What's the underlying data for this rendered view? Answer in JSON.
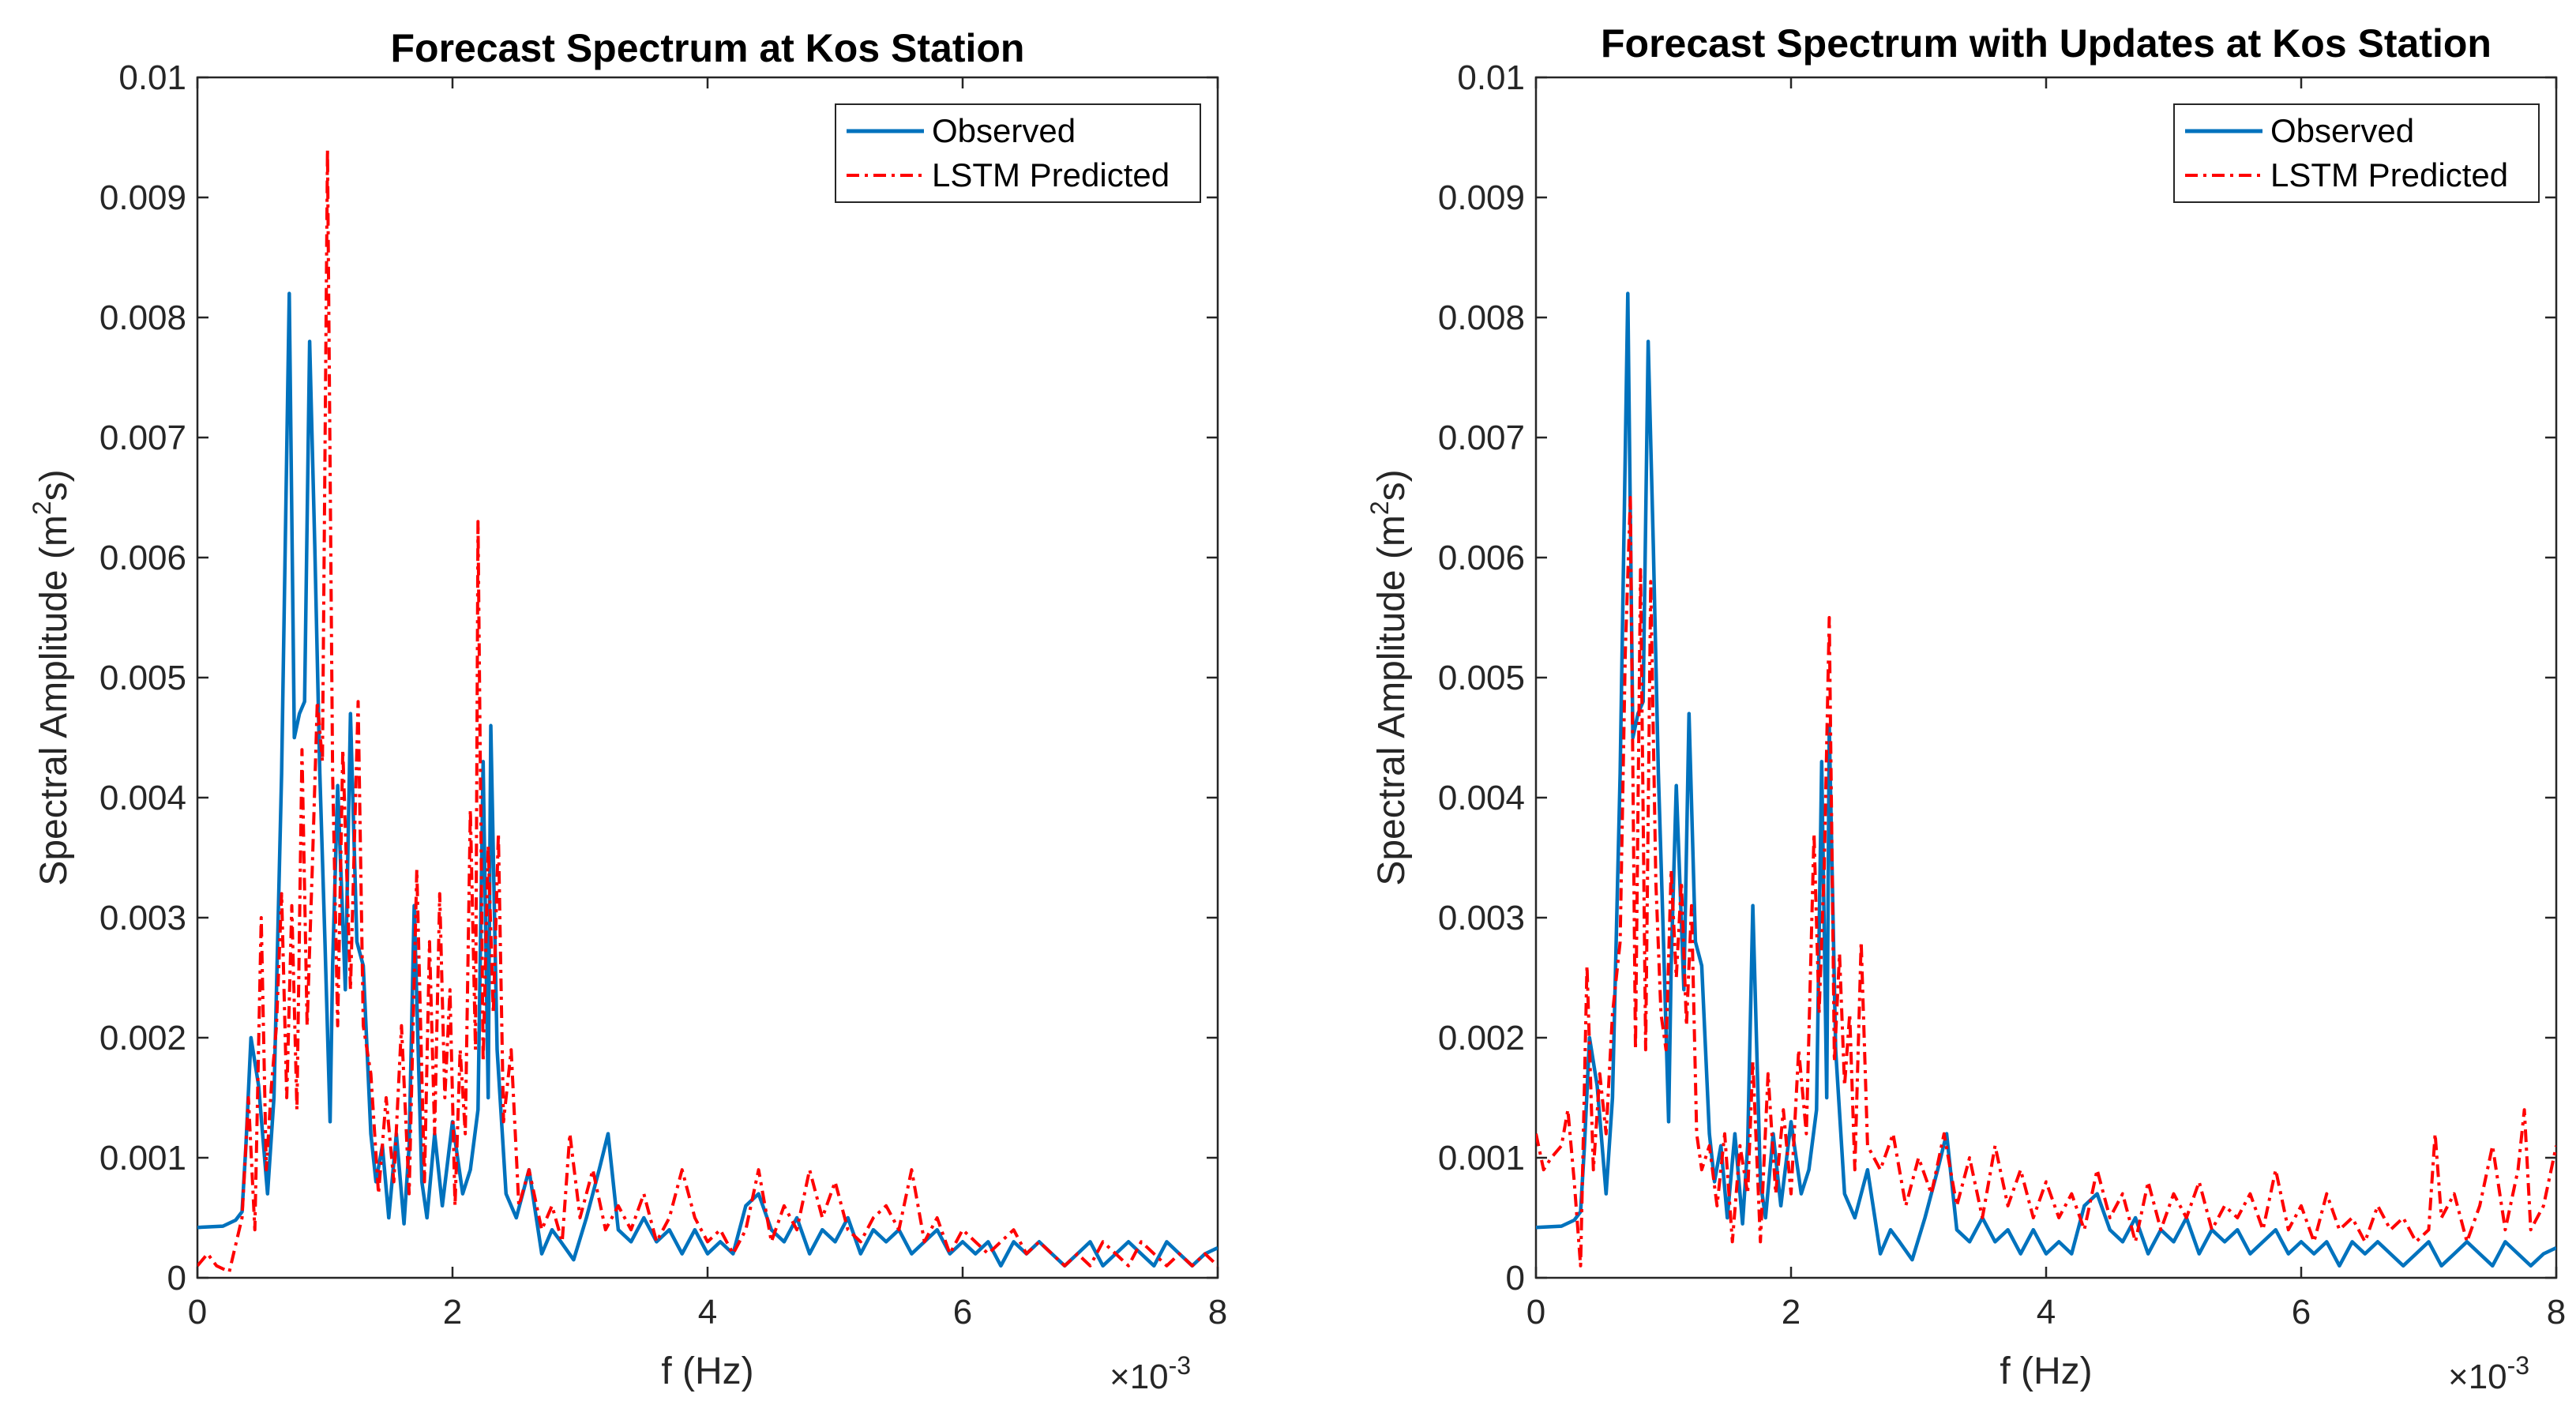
{
  "chart_data": [
    {
      "type": "line",
      "title": "Forecast Spectrum at Kos Station",
      "xlabel": "f (Hz)",
      "ylabel_base": "Spectral Amplitude (m",
      "ylabel_sup": "2",
      "ylabel_tail": "s)",
      "x_exponent_label": "×10",
      "x_exponent": "-3",
      "xlim": [
        0,
        8
      ],
      "ylim": [
        0,
        0.01
      ],
      "x_scale": 0.001,
      "xticks": [
        0,
        2,
        4,
        6,
        8
      ],
      "xtick_labels": [
        "0",
        "2",
        "4",
        "6",
        "8"
      ],
      "yticks": [
        0,
        0.001,
        0.002,
        0.003,
        0.004,
        0.005,
        0.006,
        0.007,
        0.008,
        0.009,
        0.01
      ],
      "ytick_labels": [
        "0",
        "0.001",
        "0.002",
        "0.003",
        "0.004",
        "0.005",
        "0.006",
        "0.007",
        "0.008",
        "0.009",
        "0.01"
      ],
      "grid": false,
      "legend_position": "top-right",
      "series": [
        {
          "name": "Observed",
          "color": "#0072BD",
          "dash": "solid",
          "x": [
            0,
            0.2,
            0.3,
            0.35,
            0.38,
            0.42,
            0.48,
            0.55,
            0.6,
            0.66,
            0.72,
            0.76,
            0.8,
            0.84,
            0.88,
            0.92,
            0.96,
            1.0,
            1.04,
            1.06,
            1.1,
            1.16,
            1.2,
            1.25,
            1.3,
            1.36,
            1.4,
            1.45,
            1.5,
            1.56,
            1.62,
            1.66,
            1.7,
            1.76,
            1.8,
            1.86,
            1.92,
            2.0,
            2.08,
            2.14,
            2.2,
            2.24,
            2.28,
            2.3,
            2.35,
            2.42,
            2.5,
            2.6,
            2.7,
            2.78,
            2.85,
            2.95,
            3.05,
            3.15,
            3.22,
            3.3,
            3.4,
            3.5,
            3.6,
            3.7,
            3.8,
            3.9,
            4.0,
            4.1,
            4.2,
            4.3,
            4.4,
            4.5,
            4.6,
            4.7,
            4.8,
            4.9,
            5.0,
            5.1,
            5.2,
            5.3,
            5.4,
            5.5,
            5.6,
            5.7,
            5.8,
            5.9,
            6.0,
            6.1,
            6.2,
            6.3,
            6.4,
            6.5,
            6.6,
            6.7,
            6.8,
            6.9,
            7.0,
            7.1,
            7.2,
            7.3,
            7.4,
            7.5,
            7.6,
            7.7,
            7.8,
            7.9,
            8.0
          ],
          "y": [
            0.00042,
            0.00043,
            0.00048,
            0.00055,
            0.0011,
            0.002,
            0.0016,
            0.0007,
            0.0015,
            0.0042,
            0.0082,
            0.0045,
            0.0047,
            0.0048,
            0.0078,
            0.0061,
            0.0042,
            0.0028,
            0.0013,
            0.0026,
            0.0041,
            0.0024,
            0.0047,
            0.0028,
            0.0026,
            0.0012,
            0.0008,
            0.0011,
            0.0005,
            0.0012,
            0.00045,
            0.0011,
            0.0031,
            0.0008,
            0.0005,
            0.0012,
            0.0006,
            0.0013,
            0.0007,
            0.0009,
            0.0014,
            0.0043,
            0.0015,
            0.0046,
            0.0019,
            0.0007,
            0.0005,
            0.0009,
            0.0002,
            0.0004,
            0.0003,
            0.00015,
            0.0005,
            0.0009,
            0.0012,
            0.0004,
            0.0003,
            0.0005,
            0.0003,
            0.0004,
            0.0002,
            0.0004,
            0.0002,
            0.0003,
            0.0002,
            0.0006,
            0.0007,
            0.0004,
            0.0003,
            0.0005,
            0.0002,
            0.0004,
            0.0003,
            0.0005,
            0.0002,
            0.0004,
            0.0003,
            0.0004,
            0.0002,
            0.0003,
            0.0004,
            0.0002,
            0.0003,
            0.0002,
            0.0003,
            0.0001,
            0.0003,
            0.0002,
            0.0003,
            0.0002,
            0.0001,
            0.0002,
            0.0003,
            0.0001,
            0.0002,
            0.0003,
            0.0002,
            0.0001,
            0.0003,
            0.0002,
            0.0001,
            0.0002,
            0.00025
          ]
        },
        {
          "name": "LSTM Predicted",
          "color": "#FF0000",
          "dash": "dashdot",
          "x": [
            0,
            0.08,
            0.15,
            0.25,
            0.35,
            0.4,
            0.45,
            0.5,
            0.54,
            0.58,
            0.62,
            0.66,
            0.7,
            0.74,
            0.78,
            0.82,
            0.86,
            0.9,
            0.94,
            0.98,
            1.02,
            1.06,
            1.1,
            1.14,
            1.2,
            1.26,
            1.3,
            1.36,
            1.42,
            1.48,
            1.54,
            1.6,
            1.66,
            1.72,
            1.78,
            1.82,
            1.86,
            1.9,
            1.94,
            1.98,
            2.02,
            2.06,
            2.1,
            2.14,
            2.18,
            2.2,
            2.24,
            2.28,
            2.32,
            2.36,
            2.4,
            2.46,
            2.52,
            2.6,
            2.7,
            2.78,
            2.86,
            2.92,
            3.0,
            3.1,
            3.2,
            3.3,
            3.4,
            3.5,
            3.6,
            3.7,
            3.8,
            3.9,
            4.0,
            4.1,
            4.2,
            4.3,
            4.4,
            4.5,
            4.6,
            4.7,
            4.8,
            4.9,
            5.0,
            5.1,
            5.2,
            5.3,
            5.4,
            5.5,
            5.6,
            5.7,
            5.8,
            5.9,
            6.0,
            6.1,
            6.2,
            6.3,
            6.4,
            6.5,
            6.6,
            6.7,
            6.8,
            6.9,
            7.0,
            7.1,
            7.2,
            7.3,
            7.4,
            7.5,
            7.6,
            7.7,
            7.8,
            7.9,
            8.0
          ],
          "y": [
            0.0001,
            0.0002,
            0.0001,
            5e-05,
            0.0005,
            0.0015,
            0.0004,
            0.003,
            0.0009,
            0.0016,
            0.0021,
            0.0032,
            0.0015,
            0.0031,
            0.0014,
            0.0044,
            0.0021,
            0.0034,
            0.0048,
            0.0043,
            0.0094,
            0.0042,
            0.0021,
            0.0044,
            0.0024,
            0.0048,
            0.0021,
            0.0017,
            0.0007,
            0.0015,
            0.0008,
            0.0021,
            0.0007,
            0.0034,
            0.0008,
            0.0028,
            0.0012,
            0.0032,
            0.0015,
            0.0024,
            0.0006,
            0.0019,
            0.0012,
            0.0039,
            0.0019,
            0.0063,
            0.0018,
            0.0036,
            0.0022,
            0.0037,
            0.0013,
            0.0019,
            0.0006,
            0.0009,
            0.0004,
            0.0006,
            0.0003,
            0.0012,
            0.0005,
            0.0009,
            0.0004,
            0.0006,
            0.0004,
            0.0007,
            0.0003,
            0.0005,
            0.0009,
            0.0005,
            0.0003,
            0.0004,
            0.0002,
            0.0004,
            0.0009,
            0.0003,
            0.0006,
            0.0004,
            0.0009,
            0.0005,
            0.0008,
            0.0004,
            0.0003,
            0.0005,
            0.0006,
            0.0004,
            0.0009,
            0.0003,
            0.0005,
            0.0002,
            0.0004,
            0.0003,
            0.0002,
            0.0003,
            0.0004,
            0.0002,
            0.0003,
            0.0002,
            0.0001,
            0.0002,
            0.0001,
            0.0003,
            0.0002,
            0.0001,
            0.0003,
            0.0002,
            0.0001,
            0.0002,
            0.0001,
            0.0002,
            0.0001
          ]
        }
      ]
    },
    {
      "type": "line",
      "title": "Forecast Spectrum with Updates at Kos Station",
      "xlabel": "f (Hz)",
      "ylabel_base": "Spectral Amplitude (m",
      "ylabel_sup": "2",
      "ylabel_tail": "s)",
      "x_exponent_label": "×10",
      "x_exponent": "-3",
      "xlim": [
        0,
        8
      ],
      "ylim": [
        0,
        0.01
      ],
      "x_scale": 0.001,
      "xticks": [
        0,
        2,
        4,
        6,
        8
      ],
      "xtick_labels": [
        "0",
        "2",
        "4",
        "6",
        "8"
      ],
      "yticks": [
        0,
        0.001,
        0.002,
        0.003,
        0.004,
        0.005,
        0.006,
        0.007,
        0.008,
        0.009,
        0.01
      ],
      "ytick_labels": [
        "0",
        "0.001",
        "0.002",
        "0.003",
        "0.004",
        "0.005",
        "0.006",
        "0.007",
        "0.008",
        "0.009",
        "0.01"
      ],
      "grid": false,
      "legend_position": "top-right",
      "series": [
        {
          "name": "Observed",
          "color": "#0072BD",
          "dash": "solid",
          "x": [
            0,
            0.2,
            0.3,
            0.35,
            0.38,
            0.42,
            0.48,
            0.55,
            0.6,
            0.66,
            0.72,
            0.76,
            0.8,
            0.84,
            0.88,
            0.92,
            0.96,
            1.0,
            1.04,
            1.06,
            1.1,
            1.16,
            1.2,
            1.25,
            1.3,
            1.36,
            1.4,
            1.45,
            1.5,
            1.56,
            1.62,
            1.66,
            1.7,
            1.76,
            1.8,
            1.86,
            1.92,
            2.0,
            2.08,
            2.14,
            2.2,
            2.24,
            2.28,
            2.3,
            2.35,
            2.42,
            2.5,
            2.6,
            2.7,
            2.78,
            2.85,
            2.95,
            3.05,
            3.15,
            3.22,
            3.3,
            3.4,
            3.5,
            3.6,
            3.7,
            3.8,
            3.9,
            4.0,
            4.1,
            4.2,
            4.3,
            4.4,
            4.5,
            4.6,
            4.7,
            4.8,
            4.9,
            5.0,
            5.1,
            5.2,
            5.3,
            5.4,
            5.5,
            5.6,
            5.7,
            5.8,
            5.9,
            6.0,
            6.1,
            6.2,
            6.3,
            6.4,
            6.5,
            6.6,
            6.7,
            6.8,
            6.9,
            7.0,
            7.1,
            7.2,
            7.3,
            7.4,
            7.5,
            7.6,
            7.7,
            7.8,
            7.9,
            8.0
          ],
          "y": [
            0.00042,
            0.00043,
            0.00048,
            0.00055,
            0.0011,
            0.002,
            0.0016,
            0.0007,
            0.0015,
            0.0042,
            0.0082,
            0.0045,
            0.0047,
            0.0048,
            0.0078,
            0.0061,
            0.0042,
            0.0028,
            0.0013,
            0.0026,
            0.0041,
            0.0024,
            0.0047,
            0.0028,
            0.0026,
            0.0012,
            0.0008,
            0.0011,
            0.0005,
            0.0012,
            0.00045,
            0.0011,
            0.0031,
            0.0008,
            0.0005,
            0.0012,
            0.0006,
            0.0013,
            0.0007,
            0.0009,
            0.0014,
            0.0043,
            0.0015,
            0.0046,
            0.0019,
            0.0007,
            0.0005,
            0.0009,
            0.0002,
            0.0004,
            0.0003,
            0.00015,
            0.0005,
            0.0009,
            0.0012,
            0.0004,
            0.0003,
            0.0005,
            0.0003,
            0.0004,
            0.0002,
            0.0004,
            0.0002,
            0.0003,
            0.0002,
            0.0006,
            0.0007,
            0.0004,
            0.0003,
            0.0005,
            0.0002,
            0.0004,
            0.0003,
            0.0005,
            0.0002,
            0.0004,
            0.0003,
            0.0004,
            0.0002,
            0.0003,
            0.0004,
            0.0002,
            0.0003,
            0.0002,
            0.0003,
            0.0001,
            0.0003,
            0.0002,
            0.0003,
            0.0002,
            0.0001,
            0.0002,
            0.0003,
            0.0001,
            0.0002,
            0.0003,
            0.0002,
            0.0001,
            0.0003,
            0.0002,
            0.0001,
            0.0002,
            0.00025
          ]
        },
        {
          "name": "LSTM Predicted",
          "color": "#FF0000",
          "dash": "dashdot",
          "x": [
            0,
            0.06,
            0.12,
            0.2,
            0.25,
            0.3,
            0.35,
            0.4,
            0.45,
            0.5,
            0.55,
            0.6,
            0.66,
            0.7,
            0.74,
            0.78,
            0.82,
            0.86,
            0.9,
            0.94,
            0.98,
            1.02,
            1.06,
            1.1,
            1.14,
            1.18,
            1.22,
            1.26,
            1.3,
            1.36,
            1.42,
            1.48,
            1.54,
            1.6,
            1.66,
            1.7,
            1.76,
            1.82,
            1.88,
            1.94,
            2.0,
            2.06,
            2.12,
            2.18,
            2.22,
            2.26,
            2.3,
            2.34,
            2.38,
            2.42,
            2.46,
            2.5,
            2.55,
            2.6,
            2.7,
            2.8,
            2.9,
            3.0,
            3.1,
            3.2,
            3.3,
            3.4,
            3.5,
            3.6,
            3.7,
            3.8,
            3.9,
            4.0,
            4.1,
            4.2,
            4.3,
            4.4,
            4.5,
            4.6,
            4.7,
            4.8,
            4.9,
            5.0,
            5.1,
            5.2,
            5.3,
            5.4,
            5.5,
            5.6,
            5.7,
            5.8,
            5.9,
            6.0,
            6.1,
            6.2,
            6.3,
            6.4,
            6.5,
            6.6,
            6.7,
            6.8,
            6.9,
            7.0,
            7.05,
            7.1,
            7.2,
            7.3,
            7.4,
            7.5,
            7.6,
            7.7,
            7.75,
            7.8,
            7.9,
            8.0
          ],
          "y": [
            0.0012,
            0.0009,
            0.001,
            0.0011,
            0.0014,
            0.0008,
            0.0001,
            0.0026,
            0.0009,
            0.0017,
            0.0012,
            0.0022,
            0.0028,
            0.0052,
            0.0065,
            0.0019,
            0.0059,
            0.0019,
            0.0058,
            0.0033,
            0.0022,
            0.0019,
            0.0034,
            0.0025,
            0.0033,
            0.0021,
            0.0031,
            0.0012,
            0.0009,
            0.0011,
            0.0006,
            0.0012,
            0.0003,
            0.0011,
            0.0007,
            0.0018,
            0.0003,
            0.0017,
            0.0007,
            0.0014,
            0.0007,
            0.0019,
            0.0012,
            0.0037,
            0.0022,
            0.0034,
            0.0055,
            0.0018,
            0.0027,
            0.0016,
            0.0022,
            0.0009,
            0.0028,
            0.0011,
            0.0009,
            0.0012,
            0.0006,
            0.001,
            0.0007,
            0.0012,
            0.0006,
            0.001,
            0.0005,
            0.0011,
            0.0006,
            0.0009,
            0.0005,
            0.0008,
            0.0005,
            0.0007,
            0.0004,
            0.0009,
            0.0005,
            0.0007,
            0.0003,
            0.0008,
            0.0004,
            0.0007,
            0.0005,
            0.0008,
            0.0004,
            0.0006,
            0.0005,
            0.0007,
            0.0004,
            0.0009,
            0.0004,
            0.0006,
            0.0003,
            0.0007,
            0.0004,
            0.0005,
            0.0003,
            0.0006,
            0.0004,
            0.0005,
            0.0003,
            0.0004,
            0.0012,
            0.0005,
            0.0007,
            0.0003,
            0.0006,
            0.0011,
            0.0004,
            0.0009,
            0.0014,
            0.0004,
            0.0006,
            0.0011
          ]
        }
      ]
    }
  ]
}
